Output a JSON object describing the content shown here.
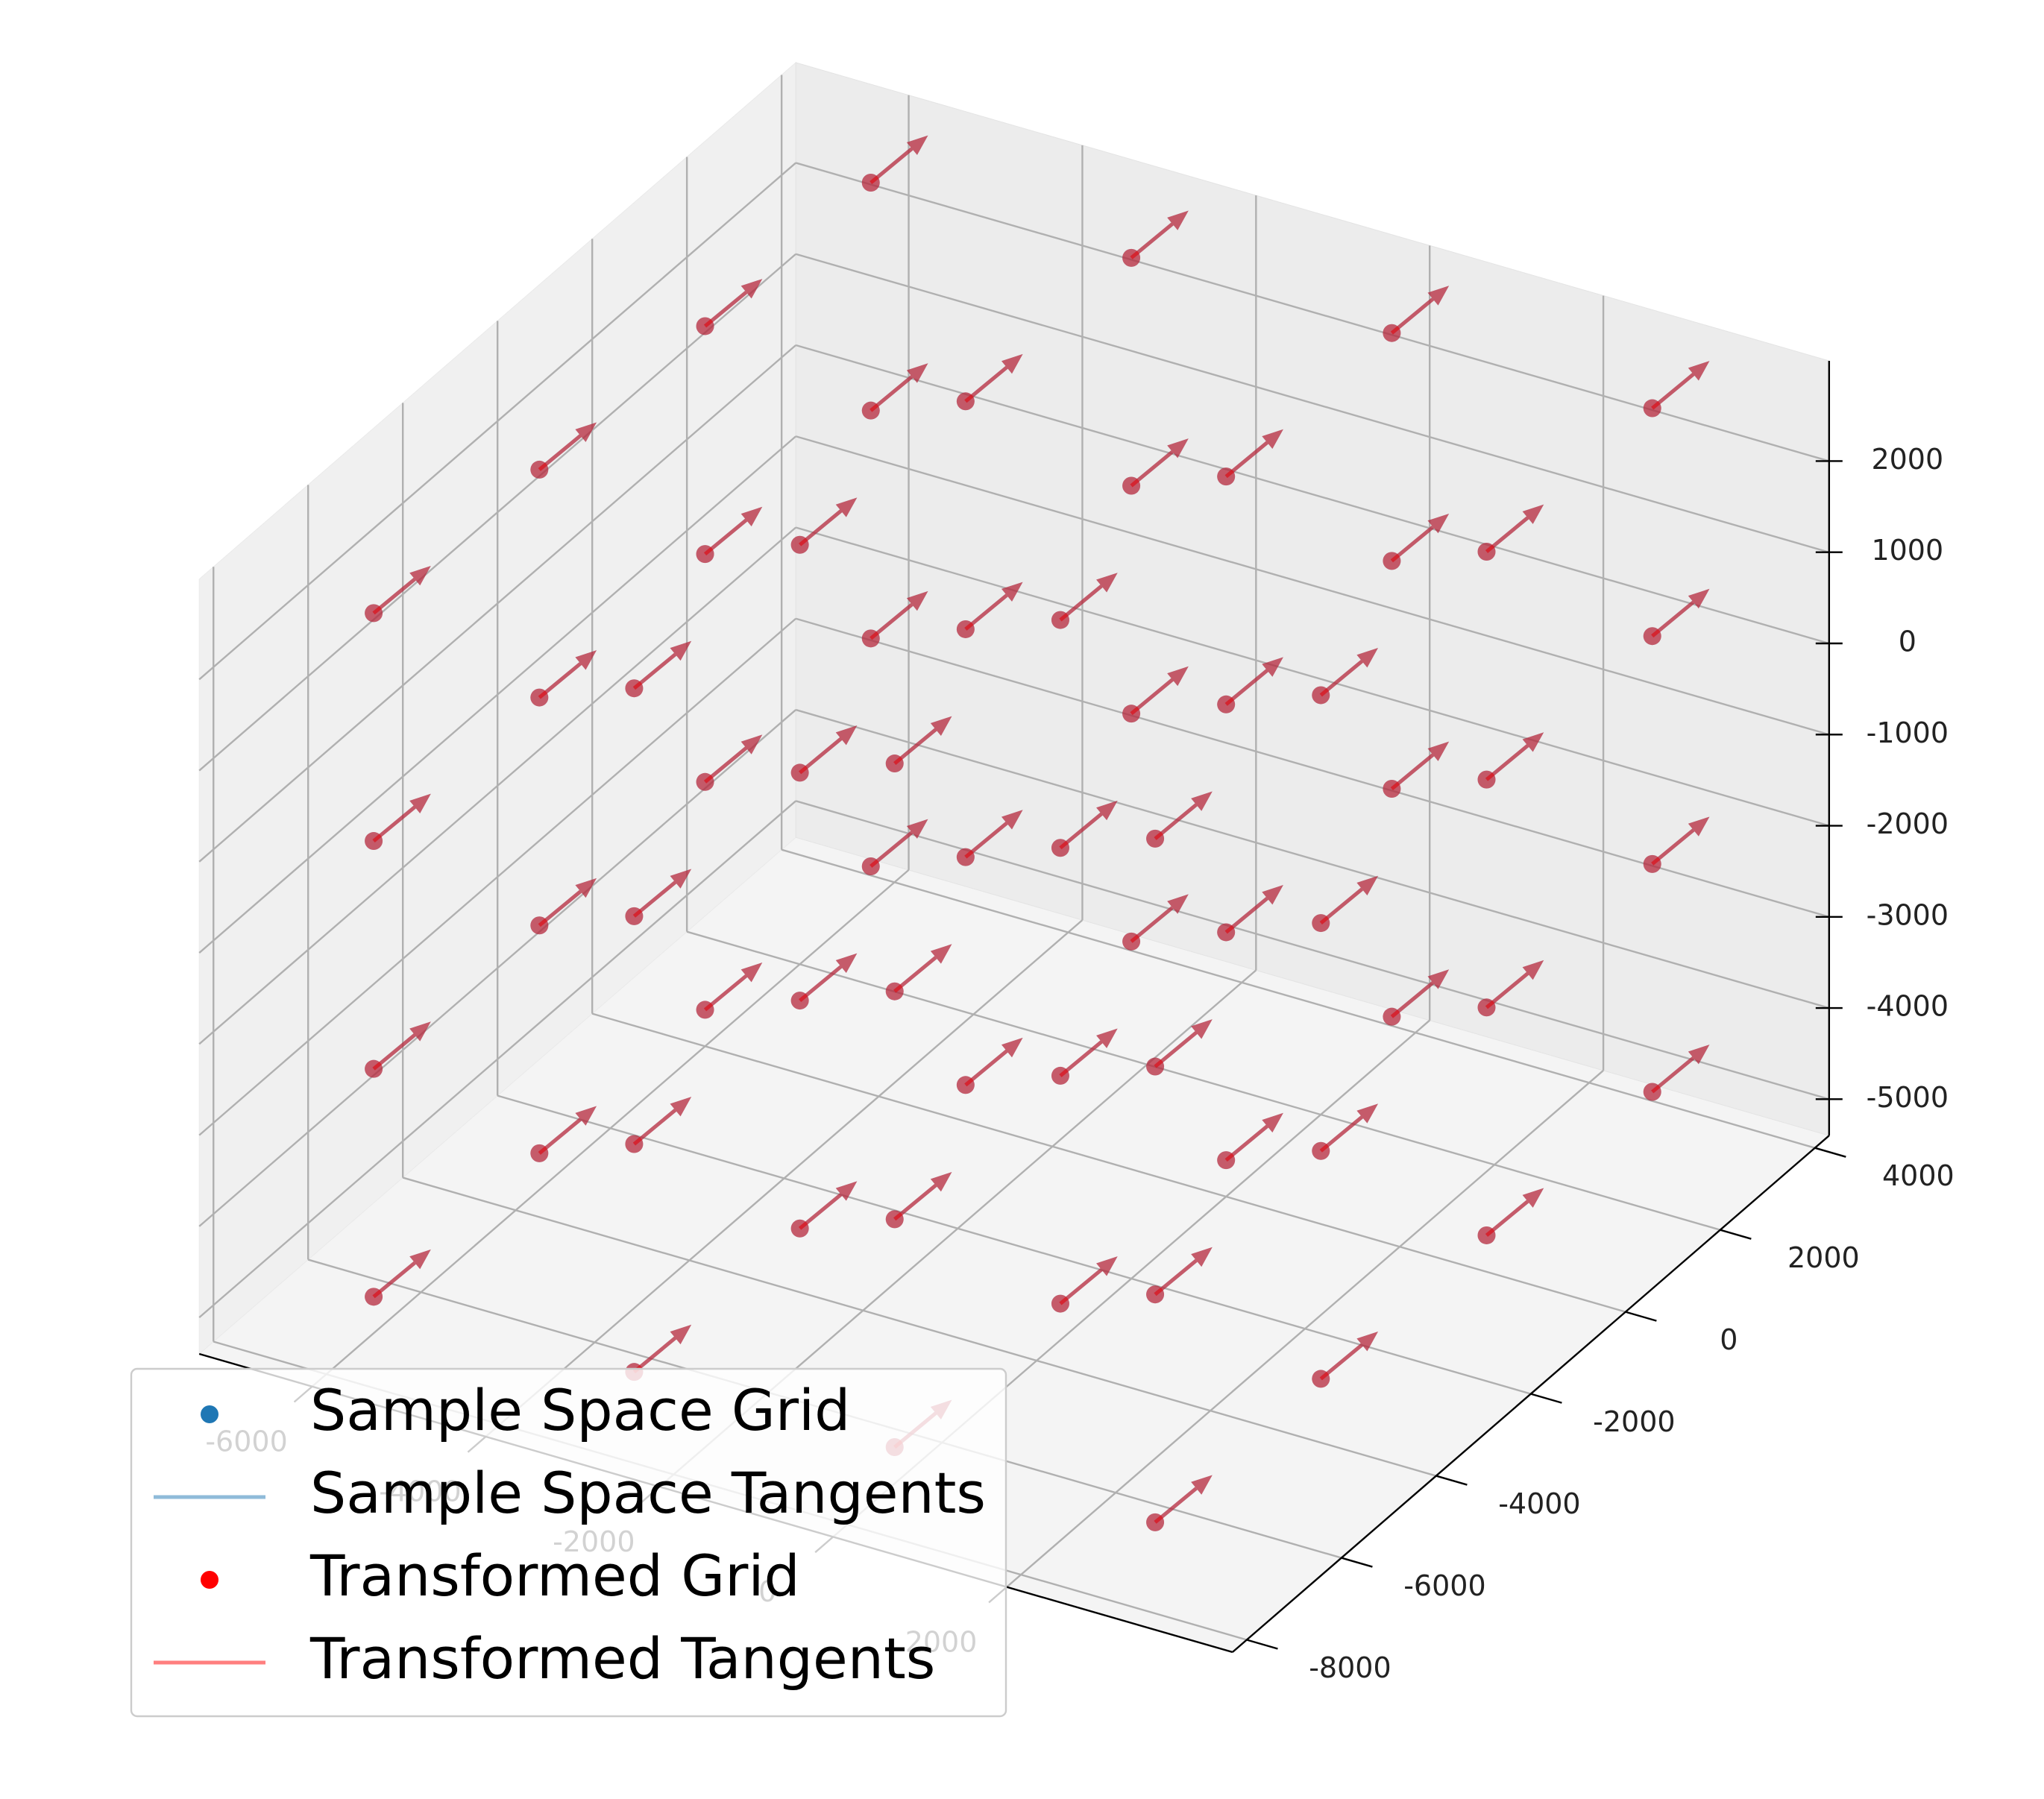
{
  "chart_data": {
    "type": "scatter3d",
    "xlim": [
      -7300,
      4600
    ],
    "ylim": [
      -8300,
      4300
    ],
    "zlim": [
      -5400,
      3100
    ],
    "xticks": [
      -6000,
      -4000,
      -2000,
      0,
      2000
    ],
    "yticks": [
      -8000,
      -6000,
      -4000,
      -2000,
      0,
      2000,
      4000
    ],
    "zticks": [
      -5000,
      -4000,
      -3000,
      -2000,
      -1000,
      0,
      1000,
      2000
    ],
    "grid": true,
    "legend": "lower left",
    "series": [
      {
        "name": "Sample Space Grid",
        "tangent_name": "Sample Space Tangents",
        "color": "#1f77b4",
        "alpha": 0.5,
        "tangent": [
          250,
          750,
          250
        ],
        "x": [
          -6000,
          -3000,
          0,
          3000,
          -6000,
          -3000,
          0,
          3000,
          -6000,
          -3000,
          0,
          3000,
          -6000,
          -3000,
          0,
          3000,
          -6000,
          -3000,
          0,
          3000,
          -6000,
          -3000,
          0,
          3000,
          -6000,
          -3000,
          0,
          3000,
          -6000,
          -3000,
          0,
          3000,
          -6000,
          -3000,
          0,
          3000,
          -6000,
          -3000,
          0,
          3000,
          -6000,
          -3000,
          0,
          3000,
          -6000,
          -3000,
          0,
          3000,
          -6000,
          -3000,
          0,
          3000,
          -6000,
          -3000,
          0,
          3000,
          -6000,
          -3000,
          0,
          3000,
          -6000,
          -3000,
          0,
          3000
        ],
        "y": [
          -7000,
          -7000,
          -7000,
          -7000,
          -3500,
          -3500,
          -3500,
          -3500,
          0,
          0,
          0,
          0,
          3500,
          3500,
          3500,
          3500,
          -7000,
          -7000,
          -7000,
          -7000,
          -3500,
          -3500,
          -3500,
          -3500,
          0,
          0,
          0,
          0,
          3500,
          3500,
          3500,
          3500,
          -7000,
          -7000,
          -7000,
          -7000,
          -3500,
          -3500,
          -3500,
          -3500,
          0,
          0,
          0,
          0,
          3500,
          3500,
          3500,
          3500,
          -7000,
          -7000,
          -7000,
          -7000,
          -3500,
          -3500,
          -3500,
          -3500,
          0,
          0,
          0,
          0,
          3500,
          3500,
          3500,
          3500
        ],
        "z": [
          -5000,
          -5000,
          -5000,
          -5000,
          -5000,
          -5000,
          -5000,
          -5000,
          -5000,
          -5000,
          -5000,
          -5000,
          -5000,
          -5000,
          -5000,
          -5000,
          -2500,
          -2500,
          -2500,
          -2500,
          -2500,
          -2500,
          -2500,
          -2500,
          -2500,
          -2500,
          -2500,
          -2500,
          -2500,
          -2500,
          -2500,
          -2500,
          0,
          0,
          0,
          0,
          0,
          0,
          0,
          0,
          0,
          0,
          0,
          0,
          0,
          0,
          0,
          0,
          2500,
          2500,
          2500,
          2500,
          2500,
          2500,
          2500,
          2500,
          2500,
          2500,
          2500,
          2500,
          2500,
          2500,
          2500,
          2500
        ]
      },
      {
        "name": "Transformed Grid",
        "tangent_name": "Transformed Tangents",
        "color": "#ff0000",
        "alpha": 0.5,
        "tangent": [
          250,
          750,
          250
        ],
        "x": [
          -6000,
          -3000,
          0,
          3000,
          -6000,
          -3000,
          0,
          3000,
          -6000,
          -3000,
          0,
          3000,
          -6000,
          -3000,
          0,
          3000,
          -6000,
          -3000,
          0,
          3000,
          -6000,
          -3000,
          0,
          3000,
          -6000,
          -3000,
          0,
          3000,
          -6000,
          -3000,
          0,
          3000,
          -6000,
          -3000,
          0,
          3000,
          -6000,
          -3000,
          0,
          3000,
          -6000,
          -3000,
          0,
          3000,
          -6000,
          -3000,
          0,
          3000,
          -6000,
          -3000,
          0,
          3000,
          -6000,
          -3000,
          0,
          3000,
          -6000,
          -3000,
          0,
          3000,
          -6000,
          -3000,
          0,
          3000
        ],
        "y": [
          -7000,
          -7000,
          -7000,
          -7000,
          -3500,
          -3500,
          -3500,
          -3500,
          0,
          0,
          0,
          0,
          3500,
          3500,
          3500,
          3500,
          -7000,
          -7000,
          -7000,
          -7000,
          -3500,
          -3500,
          -3500,
          -3500,
          0,
          0,
          0,
          0,
          3500,
          3500,
          3500,
          3500,
          -7000,
          -7000,
          -7000,
          -7000,
          -3500,
          -3500,
          -3500,
          -3500,
          0,
          0,
          0,
          0,
          3500,
          3500,
          3500,
          3500,
          -7000,
          -7000,
          -7000,
          -7000,
          -3500,
          -3500,
          -3500,
          -3500,
          0,
          0,
          0,
          0,
          3500,
          3500,
          3500,
          3500
        ],
        "z": [
          -5000,
          -5000,
          -5000,
          -5000,
          -5000,
          -5000,
          -5000,
          -5000,
          -5000,
          -5000,
          -5000,
          -5000,
          -5000,
          -5000,
          -5000,
          -5000,
          -2500,
          -2500,
          -2500,
          -2500,
          -2500,
          -2500,
          -2500,
          -2500,
          -2500,
          -2500,
          -2500,
          -2500,
          -2500,
          -2500,
          -2500,
          -2500,
          0,
          0,
          0,
          0,
          0,
          0,
          0,
          0,
          0,
          0,
          0,
          0,
          0,
          0,
          0,
          0,
          2500,
          2500,
          2500,
          2500,
          2500,
          2500,
          2500,
          2500,
          2500,
          2500,
          2500,
          2500,
          2500,
          2500,
          2500,
          2500
        ]
      }
    ]
  }
}
